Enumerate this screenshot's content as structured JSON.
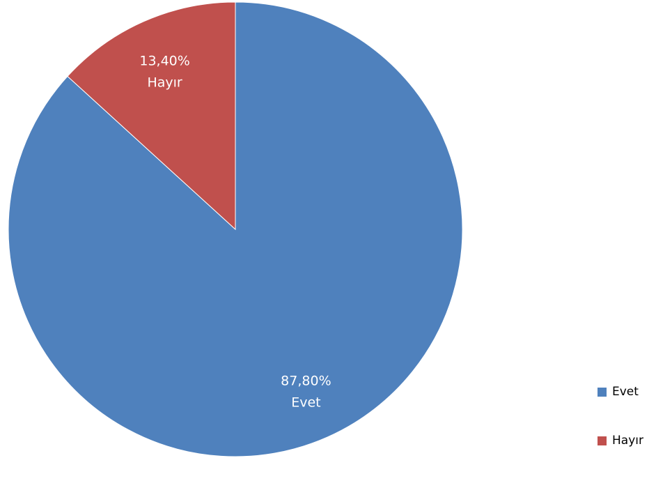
{
  "chart_data": {
    "type": "pie",
    "title": "",
    "slices": [
      {
        "label": "Evet",
        "value": 87.8,
        "display_value": "87,80%",
        "color": "#4F81BD"
      },
      {
        "label": "Hayır",
        "value": 13.4,
        "display_value": "13,40%",
        "color": "#C0504D"
      }
    ],
    "legend": {
      "placement": "bottom-right",
      "entries": [
        "Evet",
        "Hayır"
      ]
    },
    "data_labels": "value-and-category"
  }
}
